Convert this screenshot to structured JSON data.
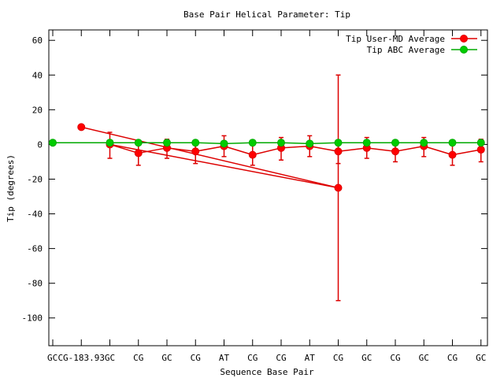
{
  "chart_data": {
    "type": "line",
    "title": "Base Pair Helical Parameter: Tip",
    "xlabel": "Sequence Base Pair",
    "ylabel": "Tip (degrees)",
    "ylim": [
      -116,
      66
    ],
    "yticks": [
      60,
      40,
      20,
      0,
      -20,
      -40,
      -60,
      -80,
      -100
    ],
    "grid": false,
    "legend_position": "top-right",
    "categories": [
      "GC",
      "CG-183.93",
      "GC",
      "CG",
      "GC",
      "CG",
      "AT",
      "CG",
      "CG",
      "AT",
      "CG",
      "GC",
      "CG",
      "GC",
      "CG",
      "GC"
    ],
    "series": [
      {
        "name": "Tip User-MD Average",
        "color": "#ff0000",
        "line_color": "#dd0000",
        "points": [
          {
            "x": 10,
            "y": -25,
            "err_low": -90,
            "err_high": 40
          },
          {
            "x": 1,
            "y": 10
          },
          {
            "x": 2,
            "y": 0,
            "err_low": -8,
            "err_high": 7
          },
          {
            "x": 3,
            "y": -5,
            "err_low": -12,
            "err_high": 1
          },
          {
            "x": 4,
            "y": -2,
            "err_low": -8,
            "err_high": 3
          },
          {
            "x": 5,
            "y": -4,
            "err_low": -11,
            "err_high": 2
          },
          {
            "x": 6,
            "y": -1,
            "err_low": -7,
            "err_high": 5
          },
          {
            "x": 7,
            "y": -6,
            "err_low": -12,
            "err_high": 0
          },
          {
            "x": 8,
            "y": -2,
            "err_low": -9,
            "err_high": 4
          },
          {
            "x": 9,
            "y": -1,
            "err_low": -7,
            "err_high": 5
          },
          {
            "x": 10,
            "y": -4,
            "err_low": -11,
            "err_high": 2
          },
          {
            "x": 11,
            "y": -2,
            "err_low": -8,
            "err_high": 4
          },
          {
            "x": 12,
            "y": -4,
            "err_low": -10,
            "err_high": 2
          },
          {
            "x": 13,
            "y": -1,
            "err_low": -7,
            "err_high": 4
          },
          {
            "x": 14,
            "y": -6,
            "err_low": -12,
            "err_high": 0
          },
          {
            "x": 15,
            "y": -3,
            "err_low": -10,
            "err_high": 3
          }
        ],
        "line_segments": [
          [
            0,
            1
          ],
          [
            0,
            2
          ],
          [
            2,
            3
          ],
          [
            3,
            4
          ],
          [
            4,
            5
          ],
          [
            5,
            6
          ],
          [
            6,
            7
          ],
          [
            7,
            8
          ],
          [
            8,
            9
          ],
          [
            9,
            10
          ],
          [
            10,
            11
          ],
          [
            11,
            12
          ],
          [
            12,
            13
          ],
          [
            13,
            14
          ],
          [
            14,
            15
          ]
        ]
      },
      {
        "name": "Tip ABC Average",
        "color": "#00cc00",
        "line_color": "#00aa00",
        "points": [
          {
            "x": 0,
            "y": 1
          },
          {
            "x": 2,
            "y": 1
          },
          {
            "x": 3,
            "y": 1
          },
          {
            "x": 4,
            "y": 1
          },
          {
            "x": 5,
            "y": 1
          },
          {
            "x": 6,
            "y": 0.5
          },
          {
            "x": 7,
            "y": 1
          },
          {
            "x": 8,
            "y": 1
          },
          {
            "x": 9,
            "y": 0.5
          },
          {
            "x": 10,
            "y": 1
          },
          {
            "x": 11,
            "y": 1
          },
          {
            "x": 12,
            "y": 1
          },
          {
            "x": 13,
            "y": 1
          },
          {
            "x": 14,
            "y": 1
          },
          {
            "x": 15,
            "y": 1
          }
        ],
        "line_segments": [
          [
            0,
            1
          ],
          [
            1,
            2
          ],
          [
            2,
            3
          ],
          [
            3,
            4
          ],
          [
            4,
            5
          ],
          [
            5,
            6
          ],
          [
            6,
            7
          ],
          [
            7,
            8
          ],
          [
            8,
            9
          ],
          [
            9,
            10
          ],
          [
            10,
            11
          ],
          [
            11,
            12
          ],
          [
            12,
            13
          ],
          [
            13,
            14
          ]
        ]
      }
    ]
  }
}
